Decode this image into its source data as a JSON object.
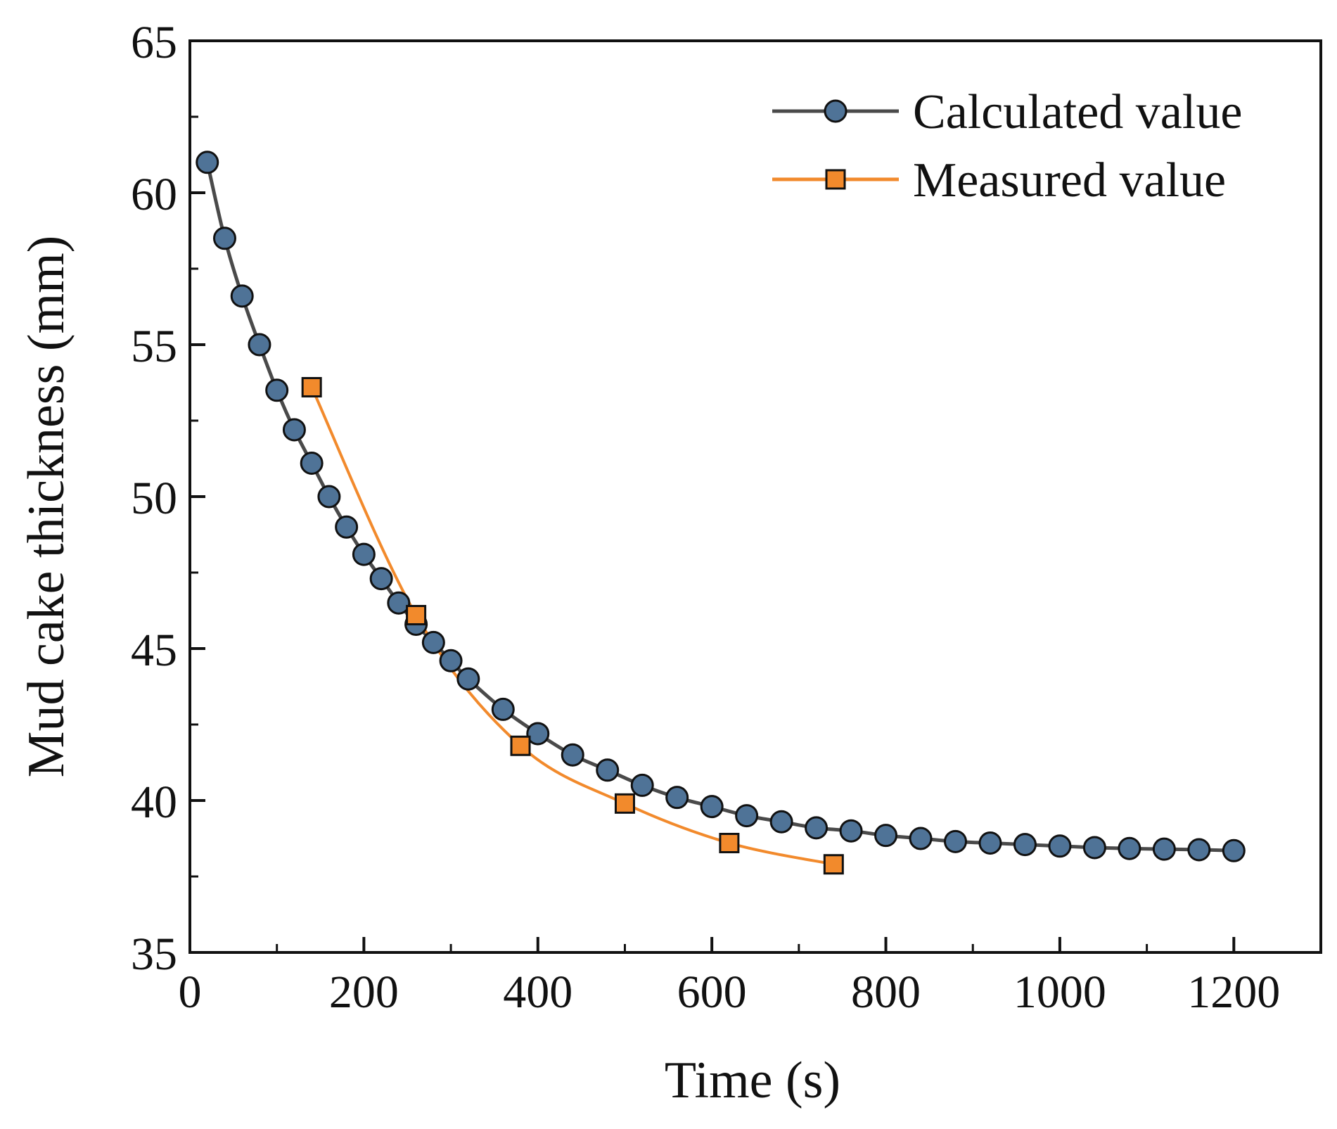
{
  "chart_data": {
    "type": "line",
    "title": "",
    "xlabel": "Time (s)",
    "ylabel": "Mud cake thickness (mm)",
    "xlim": [
      0,
      1300
    ],
    "ylim": [
      35,
      65
    ],
    "xticks": [
      0,
      200,
      400,
      600,
      800,
      1000,
      1200
    ],
    "xtick_labels": [
      "0",
      "200",
      "400",
      "600",
      "800",
      "1000",
      "1200"
    ],
    "yticks": [
      35,
      40,
      45,
      50,
      55,
      60,
      65
    ],
    "ytick_labels": [
      "35",
      "40",
      "45",
      "50",
      "55",
      "60",
      "65"
    ],
    "grid": false,
    "legend_position": "top-right",
    "series": [
      {
        "name": "Calculated value",
        "color": "#4a4a4a",
        "marker": "circle",
        "marker_color": "#4f7397",
        "x": [
          20,
          40,
          60,
          80,
          100,
          120,
          140,
          160,
          180,
          200,
          220,
          240,
          260,
          280,
          300,
          320,
          360,
          400,
          440,
          480,
          520,
          560,
          600,
          640,
          680,
          720,
          760,
          800,
          840,
          880,
          920,
          960,
          1000,
          1040,
          1080,
          1120,
          1160,
          1200
        ],
        "y": [
          61.0,
          58.5,
          56.6,
          55.0,
          53.5,
          52.2,
          51.1,
          50.0,
          49.0,
          48.1,
          47.3,
          46.5,
          45.8,
          45.2,
          44.6,
          44.0,
          43.0,
          42.2,
          41.5,
          41.0,
          40.5,
          40.1,
          39.8,
          39.5,
          39.3,
          39.1,
          39.0,
          38.85,
          38.75,
          38.65,
          38.6,
          38.55,
          38.5,
          38.45,
          38.42,
          38.4,
          38.38,
          38.35
        ]
      },
      {
        "name": "Measured value",
        "color": "#f28a2c",
        "marker": "square",
        "marker_color": "#f28a2c",
        "x": [
          140,
          260,
          380,
          500,
          620,
          740
        ],
        "y": [
          53.6,
          46.1,
          41.8,
          39.9,
          38.6,
          37.9
        ]
      }
    ]
  }
}
